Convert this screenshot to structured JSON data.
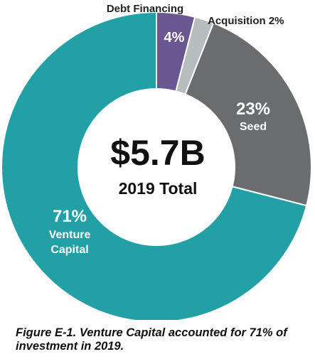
{
  "chart_data": {
    "type": "pie",
    "style": "donut",
    "center_value": "$5.7B",
    "center_label": "2019 Total",
    "slices": [
      {
        "name": "Debt Financing",
        "percent_label": "4%",
        "value": 4,
        "color": "#6a5691"
      },
      {
        "name": "Acquisition",
        "percent_label": "2%",
        "value": 2,
        "color": "#b7bcbd"
      },
      {
        "name": "Seed",
        "percent_label": "23%",
        "value": 23,
        "color": "#6a6c6d"
      },
      {
        "name": "Venture Capital",
        "percent_label": "71%",
        "value": 71,
        "color": "#23a0a6"
      }
    ],
    "labels": {
      "debt": "Debt Financing",
      "acquisition": "Acquisition 2%",
      "seed": "Seed",
      "venture_line1": "Venture",
      "venture_line2": "Capital"
    }
  },
  "caption": "Figure E-1. Venture Capital accounted for 71% of investment in 2019."
}
